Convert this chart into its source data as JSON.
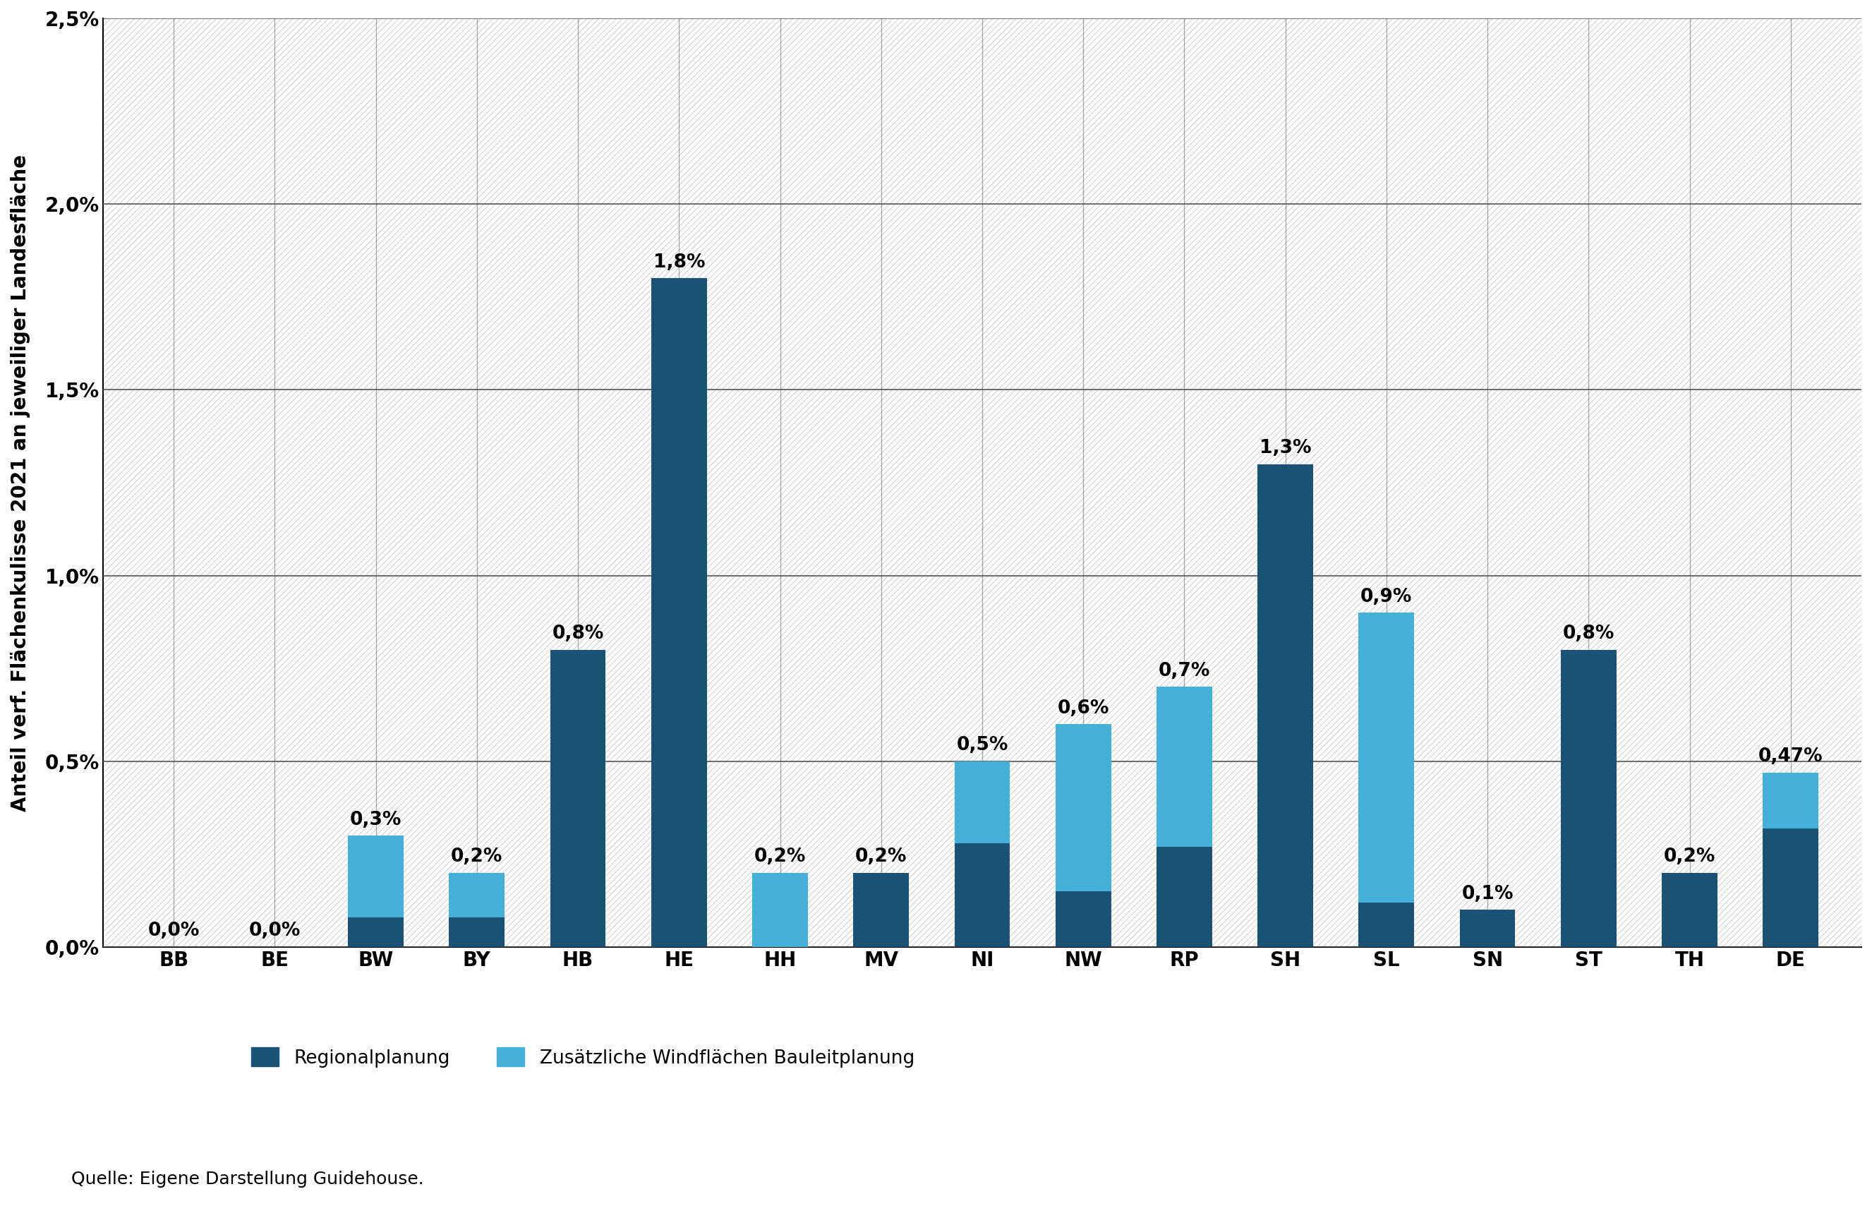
{
  "categories": [
    "BB",
    "BE",
    "BW",
    "BY",
    "HB",
    "HE",
    "HH",
    "MV",
    "NI",
    "NW",
    "RP",
    "SH",
    "SL",
    "SN",
    "ST",
    "TH",
    "DE"
  ],
  "regional": [
    0.0,
    0.0,
    0.08,
    0.08,
    0.8,
    1.8,
    0.0,
    0.2,
    0.28,
    0.15,
    0.27,
    1.3,
    0.12,
    0.1,
    0.8,
    0.2,
    0.32
  ],
  "zusaetzlich": [
    0.0,
    0.0,
    0.22,
    0.12,
    0.0,
    0.0,
    0.2,
    0.0,
    0.22,
    0.45,
    0.43,
    0.0,
    0.78,
    0.0,
    0.0,
    0.0,
    0.15
  ],
  "labels_total": [
    "0,0%",
    "0,0%",
    "0,3%",
    "0,2%",
    "0,8%",
    "1,8%",
    "0,2%",
    "0,2%",
    "0,5%",
    "0,6%",
    "0,7%",
    "1,3%",
    "0,9%",
    "0,1%",
    "0,8%",
    "0,2%",
    "0,47%"
  ],
  "color_regional": "#1a5276",
  "color_zusaetzlich": "#45b0d8",
  "ylabel": "Anteil verf. Flächenkulisse 2021 an jeweiliger Landesfläche",
  "ylim": [
    0,
    2.5
  ],
  "yticks": [
    0.0,
    0.5,
    1.0,
    1.5,
    2.0,
    2.5
  ],
  "ytick_labels": [
    "0,0%",
    "0,5%",
    "1,0%",
    "1,5%",
    "2,0%",
    "2,5%"
  ],
  "legend_regional": "Regionalplanung",
  "legend_zusaetzlich": "Zusätzliche Windflächen Bauleitplanung",
  "source_text": "Quelle: Eigene Darstellung Guidehouse.",
  "hatch_color": "#c8c8c8",
  "grid_color": "#555555",
  "bar_width": 0.55
}
